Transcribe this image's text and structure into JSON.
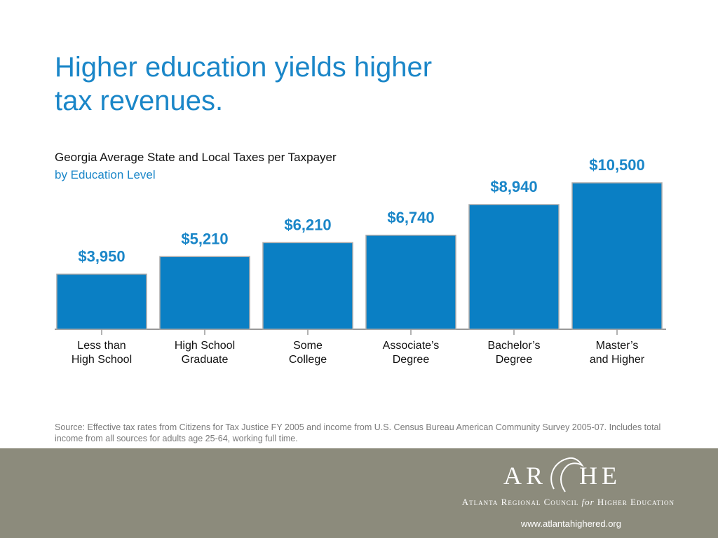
{
  "slide_title": "Higher education yields higher\ntax revenues.",
  "chart_data": {
    "type": "bar",
    "title": "Georgia Average State and Local Taxes per Taxpayer",
    "subtitle": "by Education Level",
    "categories": [
      "Less than\nHigh School",
      "High School\nGraduate",
      "Some\nCollege",
      "Associate’s\nDegree",
      "Bachelor’s\nDegree",
      "Master’s\nand Higher"
    ],
    "values": [
      3950,
      5210,
      6210,
      6740,
      8940,
      10500
    ],
    "value_labels": [
      "$3,950",
      "$5,210",
      "$6,210",
      "$6,740",
      "$8,940",
      "$10,500"
    ],
    "color": "#0a7fc4"
  },
  "source": "Source: Effective tax rates from Citizens for Tax Justice FY 2005 and income from U.S. Census Bureau American Community Survey 2005-07. Includes total income from all sources for adults age 25-64, working full time.",
  "footer": {
    "logo_left": "AR",
    "logo_right": "HE",
    "org_part1": "Atlanta Regional Council",
    "org_for": "for",
    "org_part2": "Higher Education",
    "url": "www.atlantahighered.org"
  }
}
